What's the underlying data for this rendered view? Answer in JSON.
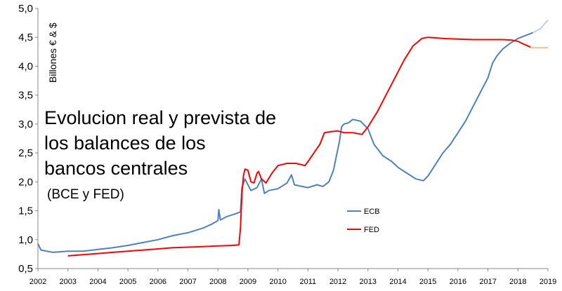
{
  "chart_data": {
    "type": "line",
    "title_lines": [
      "Evolucion real y prevista de",
      "los balances de los",
      "bancos centrales"
    ],
    "subtitle": "(BCE y FED)",
    "xlabel": "",
    "ylabel": "Billones € & $",
    "xlim": [
      2002,
      2019
    ],
    "ylim": [
      0.5,
      5.0
    ],
    "x_ticks": [
      "2002",
      "2003",
      "2004",
      "2005",
      "2006",
      "2007",
      "2008",
      "2009",
      "2010",
      "2011",
      "2012",
      "2013",
      "2014",
      "2015",
      "2016",
      "2017",
      "2018",
      "2019"
    ],
    "y_ticks": [
      "0,5",
      "1,0",
      "1,5",
      "2,0",
      "2,5",
      "3,0",
      "3,5",
      "4,0",
      "4,5",
      "5,0"
    ],
    "y_tick_values": [
      0.5,
      1.0,
      1.5,
      2.0,
      2.5,
      3.0,
      3.5,
      4.0,
      4.5,
      5.0
    ],
    "grid": false,
    "legend_position": "center-right",
    "series": [
      {
        "name": "ECB",
        "color": "#4F81BD",
        "points": [
          [
            2002.0,
            0.93
          ],
          [
            2002.1,
            0.82
          ],
          [
            2002.5,
            0.78
          ],
          [
            2003.0,
            0.8
          ],
          [
            2003.5,
            0.8
          ],
          [
            2004.0,
            0.83
          ],
          [
            2004.5,
            0.86
          ],
          [
            2005.0,
            0.9
          ],
          [
            2005.5,
            0.95
          ],
          [
            2006.0,
            1.0
          ],
          [
            2006.5,
            1.07
          ],
          [
            2007.0,
            1.12
          ],
          [
            2007.5,
            1.2
          ],
          [
            2007.8,
            1.27
          ],
          [
            2008.0,
            1.33
          ],
          [
            2008.03,
            1.52
          ],
          [
            2008.08,
            1.34
          ],
          [
            2008.3,
            1.4
          ],
          [
            2008.6,
            1.45
          ],
          [
            2008.75,
            1.48
          ],
          [
            2008.8,
            1.9
          ],
          [
            2008.9,
            2.05
          ],
          [
            2009.0,
            1.95
          ],
          [
            2009.1,
            1.85
          ],
          [
            2009.3,
            1.9
          ],
          [
            2009.45,
            2.05
          ],
          [
            2009.55,
            1.8
          ],
          [
            2009.7,
            1.85
          ],
          [
            2010.0,
            1.88
          ],
          [
            2010.3,
            1.98
          ],
          [
            2010.45,
            2.12
          ],
          [
            2010.55,
            1.95
          ],
          [
            2010.8,
            1.92
          ],
          [
            2011.0,
            1.9
          ],
          [
            2011.3,
            1.95
          ],
          [
            2011.5,
            1.92
          ],
          [
            2011.7,
            2.0
          ],
          [
            2011.85,
            2.2
          ],
          [
            2011.95,
            2.45
          ],
          [
            2012.05,
            2.7
          ],
          [
            2012.12,
            2.95
          ],
          [
            2012.2,
            3.0
          ],
          [
            2012.35,
            3.02
          ],
          [
            2012.5,
            3.08
          ],
          [
            2012.75,
            3.05
          ],
          [
            2013.0,
            2.92
          ],
          [
            2013.2,
            2.65
          ],
          [
            2013.5,
            2.45
          ],
          [
            2013.8,
            2.35
          ],
          [
            2014.0,
            2.25
          ],
          [
            2014.3,
            2.15
          ],
          [
            2014.6,
            2.05
          ],
          [
            2014.85,
            2.02
          ],
          [
            2015.0,
            2.1
          ],
          [
            2015.25,
            2.3
          ],
          [
            2015.5,
            2.5
          ],
          [
            2015.75,
            2.65
          ],
          [
            2016.0,
            2.85
          ],
          [
            2016.25,
            3.05
          ],
          [
            2016.5,
            3.3
          ],
          [
            2016.75,
            3.55
          ],
          [
            2017.0,
            3.8
          ],
          [
            2017.15,
            4.05
          ],
          [
            2017.3,
            4.18
          ],
          [
            2017.5,
            4.3
          ],
          [
            2017.75,
            4.4
          ],
          [
            2018.0,
            4.48
          ],
          [
            2018.25,
            4.53
          ],
          [
            2018.5,
            4.58
          ]
        ]
      },
      {
        "name": "FED",
        "color": "#FF0000",
        "points": [
          [
            2003.0,
            0.72
          ],
          [
            2003.5,
            0.74
          ],
          [
            2004.0,
            0.76
          ],
          [
            2004.5,
            0.78
          ],
          [
            2005.0,
            0.8
          ],
          [
            2005.5,
            0.82
          ],
          [
            2006.0,
            0.84
          ],
          [
            2006.5,
            0.86
          ],
          [
            2007.0,
            0.87
          ],
          [
            2007.5,
            0.88
          ],
          [
            2008.0,
            0.89
          ],
          [
            2008.5,
            0.9
          ],
          [
            2008.7,
            0.91
          ],
          [
            2008.75,
            1.2
          ],
          [
            2008.8,
            1.8
          ],
          [
            2008.85,
            2.1
          ],
          [
            2008.9,
            2.22
          ],
          [
            2009.0,
            2.2
          ],
          [
            2009.1,
            2.0
          ],
          [
            2009.2,
            1.98
          ],
          [
            2009.3,
            2.15
          ],
          [
            2009.35,
            2.18
          ],
          [
            2009.45,
            2.05
          ],
          [
            2009.6,
            1.98
          ],
          [
            2009.8,
            2.15
          ],
          [
            2010.0,
            2.28
          ],
          [
            2010.3,
            2.32
          ],
          [
            2010.6,
            2.32
          ],
          [
            2010.9,
            2.28
          ],
          [
            2011.0,
            2.35
          ],
          [
            2011.2,
            2.5
          ],
          [
            2011.4,
            2.65
          ],
          [
            2011.55,
            2.85
          ],
          [
            2011.8,
            2.87
          ],
          [
            2012.0,
            2.88
          ],
          [
            2012.2,
            2.85
          ],
          [
            2012.5,
            2.85
          ],
          [
            2012.8,
            2.82
          ],
          [
            2013.0,
            2.95
          ],
          [
            2013.3,
            3.2
          ],
          [
            2013.6,
            3.5
          ],
          [
            2013.9,
            3.8
          ],
          [
            2014.2,
            4.1
          ],
          [
            2014.5,
            4.35
          ],
          [
            2014.8,
            4.48
          ],
          [
            2015.0,
            4.5
          ],
          [
            2015.5,
            4.48
          ],
          [
            2016.0,
            4.47
          ],
          [
            2016.5,
            4.46
          ],
          [
            2017.0,
            4.46
          ],
          [
            2017.5,
            4.46
          ],
          [
            2017.8,
            4.45
          ],
          [
            2018.0,
            4.43
          ],
          [
            2018.2,
            4.38
          ],
          [
            2018.42,
            4.33
          ]
        ]
      },
      {
        "name": "",
        "color": "#BCD0E8",
        "points": [
          [
            2018.5,
            4.58
          ],
          [
            2018.75,
            4.65
          ],
          [
            2019.0,
            4.8
          ]
        ]
      },
      {
        "name": "",
        "color": "#F2C19E",
        "points": [
          [
            2018.42,
            4.32
          ],
          [
            2019.0,
            4.32
          ]
        ]
      }
    ]
  }
}
